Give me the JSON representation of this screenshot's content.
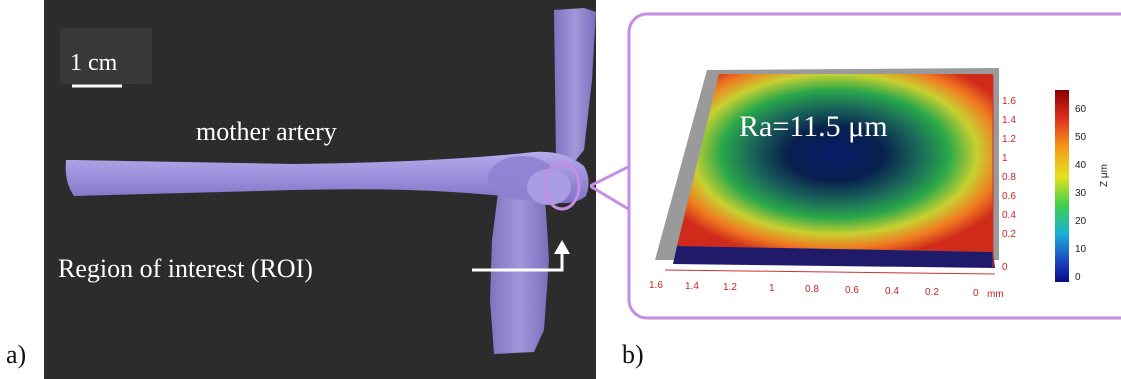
{
  "figure": {
    "panel_a": {
      "letter": "a)",
      "scale_bar_label": "1 cm",
      "artery_label": "mother artery",
      "roi_label": "Region of interest (ROI)"
    },
    "panel_b": {
      "letter": "b)",
      "roughness_label": "Ra=11.5 μm",
      "right_axis_ticks": [
        "1.6",
        "1.4",
        "1.2",
        "1",
        "0.8",
        "0.6",
        "0.4",
        "0.2",
        "0"
      ],
      "bottom_axis_ticks": [
        "1.6",
        "1.4",
        "1.2",
        "1",
        "0.8",
        "0.6",
        "0.4",
        "0.2",
        "0"
      ],
      "bottom_axis_unit": "mm",
      "colorbar_ticks": [
        "60",
        "50",
        "40",
        "30",
        "20",
        "10",
        "0"
      ],
      "colorbar_label": "Z μm"
    },
    "colors": {
      "background": "#2b2b2b",
      "artery": "#9d90dc",
      "highlight": "#c58ee3",
      "annotation": "#ffffff"
    }
  }
}
